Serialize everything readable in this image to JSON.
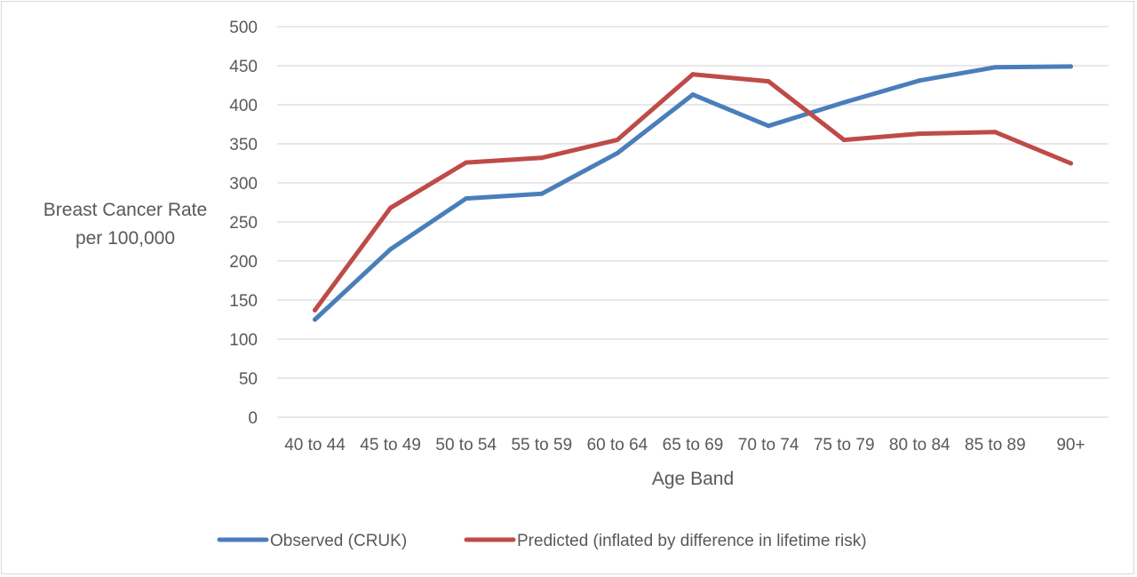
{
  "chart_data": {
    "type": "line",
    "title": "",
    "xlabel": "Age Band",
    "ylabel": [
      "Breast Cancer Rate",
      "per 100,000"
    ],
    "categories": [
      "40 to 44",
      "45 to 49",
      "50 to 54",
      "55 to 59",
      "60 to 64",
      "65 to 69",
      "70 to 74",
      "75 to 79",
      "80 to 84",
      "85 to 89",
      "90+"
    ],
    "ylim": [
      0,
      500
    ],
    "yticks": [
      0,
      50,
      100,
      150,
      200,
      250,
      300,
      350,
      400,
      450,
      500
    ],
    "grid": true,
    "legend_position": "bottom",
    "series": [
      {
        "name": "Observed (CRUK)",
        "color": "#4a7ebb",
        "values": [
          125,
          215,
          280,
          286,
          338,
          413,
          373,
          403,
          431,
          448,
          449
        ]
      },
      {
        "name": "Predicted (inflated by difference in lifetime risk)",
        "color": "#be4b48",
        "values": [
          137,
          268,
          326,
          332,
          355,
          439,
          430,
          355,
          363,
          365,
          325
        ]
      }
    ]
  }
}
